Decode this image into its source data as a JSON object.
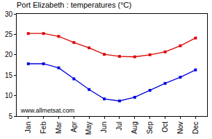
{
  "chart_data": {
    "type": "line",
    "title": "Port Elizabeth : temperatures (°C)",
    "categories": [
      "Jan",
      "Feb",
      "Mar",
      "Apr",
      "May",
      "Jun",
      "Jul",
      "Aug",
      "Sep",
      "Oct",
      "Nov",
      "Dec"
    ],
    "series": [
      {
        "color": "#e00000",
        "marker": "square",
        "values": [
          25.2,
          25.2,
          24.5,
          23.0,
          21.7,
          20.1,
          19.6,
          19.5,
          20.0,
          20.7,
          22.2,
          24.1
        ]
      },
      {
        "color": "#0000e0",
        "marker": "square",
        "values": [
          17.8,
          17.8,
          16.8,
          14.1,
          11.5,
          9.2,
          8.7,
          9.6,
          11.3,
          13.0,
          14.5,
          16.3
        ]
      }
    ],
    "ylim": [
      5,
      30
    ],
    "yticks": [
      5,
      10,
      15,
      20,
      25,
      30
    ],
    "grid": false,
    "annotations": [
      "www.allmetsat.com"
    ]
  }
}
